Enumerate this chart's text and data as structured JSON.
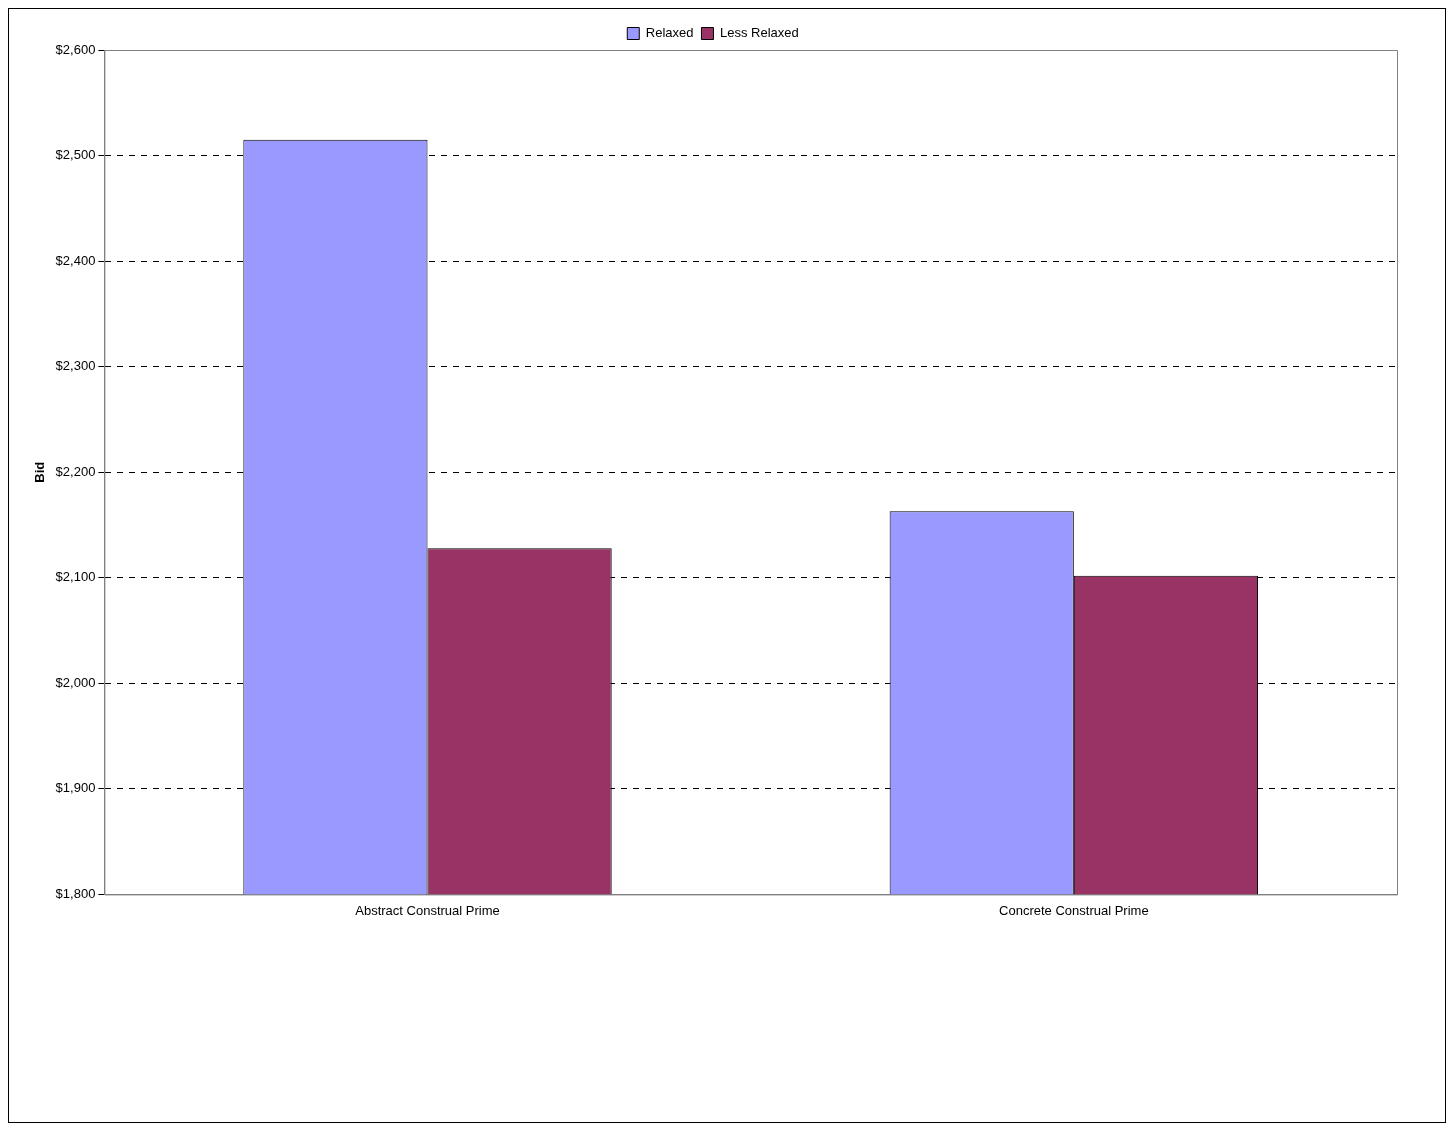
{
  "chart_data": {
    "type": "bar",
    "ylabel": "Bid",
    "categories": [
      "Abstract Construal Prime",
      "Concrete Construal Prime"
    ],
    "series": [
      {
        "name": "Relaxed",
        "color": "#9999ff",
        "values": [
          2515,
          2163
        ]
      },
      {
        "name": "Less Relaxed",
        "color": "#993366",
        "values": [
          2128,
          2102
        ]
      }
    ],
    "ylim": [
      1800,
      2600
    ],
    "yticks": [
      {
        "value": 1800,
        "label": "$1,800"
      },
      {
        "value": 1900,
        "label": "$1,900"
      },
      {
        "value": 2000,
        "label": "$2,000"
      },
      {
        "value": 2100,
        "label": "$2,100"
      },
      {
        "value": 2200,
        "label": "$2,200"
      },
      {
        "value": 2300,
        "label": "$2,300"
      },
      {
        "value": 2400,
        "label": "$2,400"
      },
      {
        "value": 2500,
        "label": "$2,500"
      },
      {
        "value": 2600,
        "label": "$2,600"
      }
    ],
    "grid": "y",
    "legend": "top"
  }
}
